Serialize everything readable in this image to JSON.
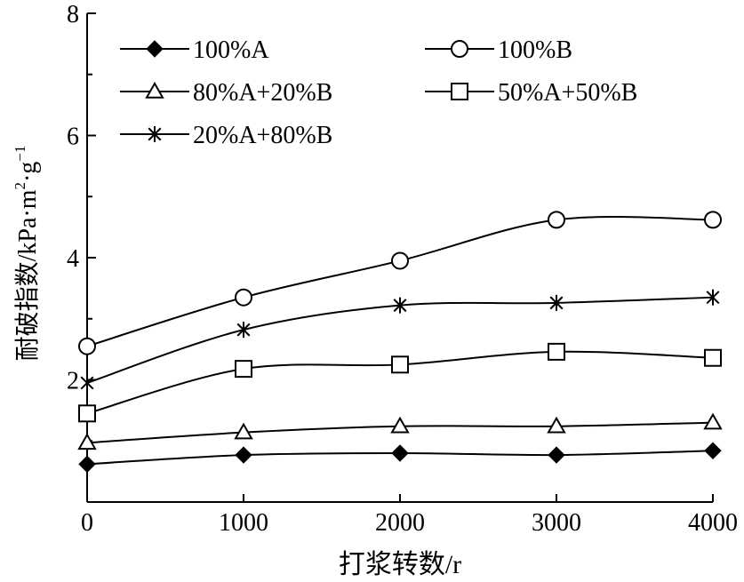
{
  "chart_data": {
    "type": "line",
    "xlabel": "打浆转数/r",
    "ylabel_main": "耐破指数/kPa·m",
    "ylabel_sup1": "2",
    "ylabel_mid": "·g",
    "ylabel_sup2": "−1",
    "x": [
      0,
      1000,
      2000,
      3000,
      4000
    ],
    "x_tick_labels": [
      "0",
      "1000",
      "2000",
      "3000",
      "4000"
    ],
    "y_ticks": [
      2,
      4,
      6,
      8
    ],
    "y_tick_labels": [
      "2",
      "4",
      "6",
      "8"
    ],
    "xlim": [
      0,
      4000
    ],
    "ylim": [
      0,
      8
    ],
    "grid": false,
    "legend_placement": "top-left",
    "series": [
      {
        "name": "100%A",
        "marker": "diamond-filled",
        "values": [
          0.62,
          0.77,
          0.8,
          0.77,
          0.84
        ]
      },
      {
        "name": "100%B",
        "marker": "circle-open",
        "values": [
          2.55,
          3.35,
          3.95,
          4.62,
          4.62
        ]
      },
      {
        "name": "80%A+20%B",
        "marker": "triangle-open",
        "values": [
          0.97,
          1.14,
          1.24,
          1.24,
          1.3
        ]
      },
      {
        "name": "50%A+50%B",
        "marker": "square-open",
        "values": [
          1.45,
          2.18,
          2.25,
          2.46,
          2.36
        ]
      },
      {
        "name": "20%A+80%B",
        "marker": "asterisk",
        "values": [
          1.95,
          2.82,
          3.22,
          3.26,
          3.35
        ]
      }
    ],
    "colors": {
      "line": "#000000",
      "axis": "#000000",
      "background": "#ffffff"
    }
  }
}
